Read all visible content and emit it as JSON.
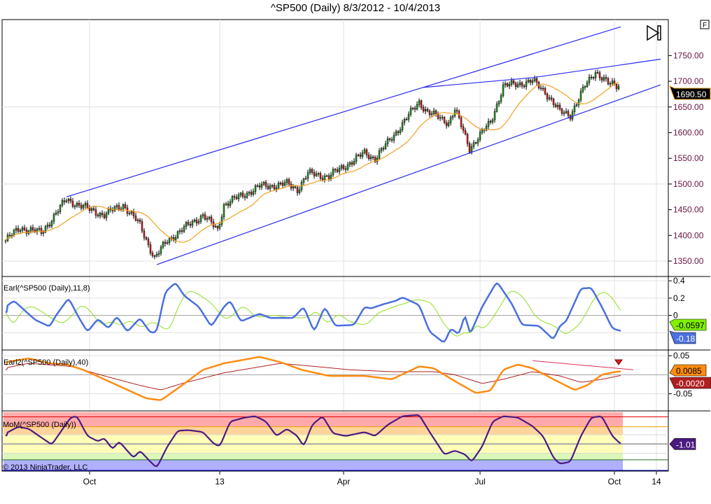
{
  "title": "^SP500 (Daily)  8/3/2012 - 10/4/2013",
  "f_button": "F",
  "copyright": "© 2013 NinjaTrader, LLC",
  "colors": {
    "up": "#22a022",
    "down": "#e0201c",
    "sma": "#f0a020",
    "trend": "#2a2af0",
    "earl": "#4a6fe0",
    "earl_signal": "#90e020",
    "earl2": "#ff8c10",
    "earl2_signal": "#b02020",
    "mom": "#4b1a80"
  },
  "chart_data": [
    {
      "type": "candlestick",
      "title": "^SP500 (Daily)",
      "x_ticks": [
        {
          "label": "Oct",
          "bar": 40
        },
        {
          "label": "13",
          "bar": 102
        },
        {
          "label": "Apr",
          "bar": 161
        },
        {
          "label": "Jul",
          "bar": 226
        },
        {
          "label": "Oct",
          "bar": 290
        },
        {
          "label": "14",
          "bar": 310
        }
      ],
      "ylim": [
        1320,
        1820
      ],
      "y_ticks": [
        "1350.00",
        "1400.00",
        "1450.00",
        "1500.00",
        "1550.00",
        "1600.00",
        "1650.00",
        "1700.00",
        "1750.00"
      ],
      "y_tick_values": [
        1350,
        1400,
        1450,
        1500,
        1550,
        1600,
        1650,
        1700,
        1750
      ],
      "last_price": "1690.50",
      "close_keypoints": [
        [
          0,
          1390
        ],
        [
          7,
          1415
        ],
        [
          17,
          1405
        ],
        [
          29,
          1470
        ],
        [
          40,
          1450
        ],
        [
          47,
          1440
        ],
        [
          56,
          1460
        ],
        [
          64,
          1420
        ],
        [
          71,
          1355
        ],
        [
          77,
          1390
        ],
        [
          94,
          1440
        ],
        [
          101,
          1410
        ],
        [
          104,
          1460
        ],
        [
          121,
          1495
        ],
        [
          134,
          1500
        ],
        [
          139,
          1490
        ],
        [
          144,
          1520
        ],
        [
          154,
          1515
        ],
        [
          171,
          1560
        ],
        [
          176,
          1550
        ],
        [
          182,
          1580
        ],
        [
          197,
          1660
        ],
        [
          201,
          1640
        ],
        [
          211,
          1620
        ],
        [
          214,
          1645
        ],
        [
          221,
          1570
        ],
        [
          231,
          1620
        ],
        [
          237,
          1690
        ],
        [
          251,
          1700
        ],
        [
          257,
          1680
        ],
        [
          264,
          1640
        ],
        [
          269,
          1635
        ],
        [
          276,
          1690
        ],
        [
          281,
          1720
        ],
        [
          287,
          1695
        ],
        [
          292,
          1690.5
        ]
      ],
      "sma_period": 20,
      "trend_lines": [
        [
          [
            29,
            1475
          ],
          [
            293,
            1806
          ]
        ],
        [
          [
            199,
            1688
          ],
          [
            251,
            1707
          ],
          [
            312,
            1743
          ]
        ],
        [
          [
            72,
            1343
          ],
          [
            312,
            1693
          ]
        ]
      ]
    },
    {
      "type": "line",
      "title": "Earl(^SP500 (Daily),11,8)",
      "ylim": [
        -0.4,
        0.45
      ],
      "y_ticks": [
        "0.4",
        "0.2",
        "0"
      ],
      "y_tick_values": [
        0.4,
        0.2,
        0
      ],
      "last_values": {
        "earl": "-0.18",
        "signal": "-0.0597"
      },
      "series": [
        {
          "name": "Earl",
          "points": [
            [
              0,
              0.1
            ],
            [
              4,
              0.17
            ],
            [
              9,
              0.06
            ],
            [
              14,
              -0.05
            ],
            [
              21,
              -0.13
            ],
            [
              24,
              0
            ],
            [
              30,
              0.2
            ],
            [
              35,
              -0.03
            ],
            [
              39,
              -0.19
            ],
            [
              44,
              -0.04
            ],
            [
              49,
              -0.15
            ],
            [
              53,
              -0.01
            ],
            [
              58,
              -0.19
            ],
            [
              64,
              -0.03
            ],
            [
              69,
              -0.2
            ],
            [
              72,
              -0.19
            ],
            [
              76,
              0.27
            ],
            [
              81,
              0.38
            ],
            [
              85,
              0.23
            ],
            [
              92,
              0.1
            ],
            [
              98,
              -0.13
            ],
            [
              104,
              0.1
            ],
            [
              107,
              0.17
            ],
            [
              112,
              -0.07
            ],
            [
              121,
              0.02
            ],
            [
              126,
              -0.03
            ],
            [
              137,
              -0.03
            ],
            [
              142,
              0.1
            ],
            [
              147,
              -0.19
            ],
            [
              152,
              0.1
            ],
            [
              157,
              -0.12
            ],
            [
              166,
              -0.11
            ],
            [
              171,
              0.1
            ],
            [
              174,
              0.08
            ],
            [
              180,
              0.13
            ],
            [
              186,
              0.17
            ],
            [
              189,
              0.21
            ],
            [
              197,
              0.12
            ],
            [
              202,
              -0.19
            ],
            [
              209,
              -0.32
            ],
            [
              212,
              -0.15
            ],
            [
              216,
              -0.22
            ],
            [
              219,
              0.03
            ],
            [
              221,
              -0.23
            ],
            [
              227,
              0.1
            ],
            [
              234,
              0.39
            ],
            [
              241,
              0.14
            ],
            [
              246,
              -0.11
            ],
            [
              254,
              -0.12
            ],
            [
              261,
              -0.28
            ],
            [
              264,
              -0.12
            ],
            [
              267,
              -0.07
            ],
            [
              274,
              0.31
            ],
            [
              279,
              0.32
            ],
            [
              284,
              0.1
            ],
            [
              289,
              -0.15
            ],
            [
              293,
              -0.18
            ]
          ]
        }
      ]
    },
    {
      "type": "line",
      "title": "Earl2(^SP500 (Daily),40)",
      "ylim": [
        -0.095,
        0.065
      ],
      "y_ticks": [
        "0.05",
        "-0.05"
      ],
      "y_tick_values": [
        0.05,
        -0.05
      ],
      "last_values": {
        "earl2": "0.0085",
        "signal": "-0.0020"
      },
      "series": [
        {
          "name": "Earl2",
          "points": [
            [
              0,
              0.033
            ],
            [
              11,
              0.043
            ],
            [
              21,
              0.03
            ],
            [
              29,
              0.027
            ],
            [
              37,
              0.013
            ],
            [
              47,
              -0.012
            ],
            [
              57,
              -0.037
            ],
            [
              67,
              -0.062
            ],
            [
              74,
              -0.067
            ],
            [
              84,
              -0.028
            ],
            [
              94,
              0.013
            ],
            [
              104,
              0.03
            ],
            [
              121,
              0.047
            ],
            [
              131,
              0.033
            ],
            [
              141,
              0.013
            ],
            [
              154,
              -0.003
            ],
            [
              171,
              -0.003
            ],
            [
              184,
              -0.012
            ],
            [
              197,
              0.022
            ],
            [
              204,
              0.017
            ],
            [
              214,
              -0.017
            ],
            [
              224,
              -0.048
            ],
            [
              231,
              -0.042
            ],
            [
              237,
              0.013
            ],
            [
              244,
              0.027
            ],
            [
              251,
              0.017
            ],
            [
              261,
              -0.012
            ],
            [
              271,
              -0.04
            ],
            [
              277,
              -0.028
            ],
            [
              284,
              0
            ],
            [
              291,
              0.008
            ],
            [
              293,
              0.0085
            ]
          ]
        },
        {
          "name": "Signal",
          "points": [
            [
              0,
              0.018
            ],
            [
              11,
              0.03
            ],
            [
              31,
              0.022
            ],
            [
              47,
              -0.003
            ],
            [
              64,
              -0.028
            ],
            [
              74,
              -0.04
            ],
            [
              84,
              -0.023
            ],
            [
              104,
              0.005
            ],
            [
              131,
              0.03
            ],
            [
              147,
              0.022
            ],
            [
              164,
              0.013
            ],
            [
              184,
              0.008
            ],
            [
              204,
              0.008
            ],
            [
              214,
              0
            ],
            [
              227,
              -0.023
            ],
            [
              237,
              -0.012
            ],
            [
              251,
              0.008
            ],
            [
              264,
              -0.003
            ],
            [
              274,
              -0.02
            ],
            [
              284,
              -0.012
            ],
            [
              293,
              -0.002
            ]
          ]
        }
      ],
      "divergence_line": [
        [
          251,
          0.037
        ],
        [
          299,
          0.013
        ]
      ],
      "signal_marker_bar": 292
    },
    {
      "type": "line",
      "title": "MoM(^SP500 (Daily))",
      "ylim": [
        -5.1,
        4.0
      ],
      "last_value": "-1.01",
      "bands": [
        {
          "from": 1.6,
          "to": 3.8,
          "color": "#ffaaaa"
        },
        {
          "from": 0.4,
          "to": 1.6,
          "color": "#ffd49a"
        },
        {
          "from": -2.4,
          "to": 0.4,
          "color": "#ffffb8"
        },
        {
          "from": -3.4,
          "to": -2.4,
          "color": "#dcf8b8"
        },
        {
          "from": -5.0,
          "to": -3.4,
          "color": "#b0b0ff"
        }
      ],
      "levels": [
        {
          "v": 3.1,
          "color": "#e00000"
        },
        {
          "v": 1.6,
          "color": "#f0a000"
        },
        {
          "v": 0.4,
          "color": "#d8d8d8"
        },
        {
          "v": -1.0,
          "color": "#a8a8a8"
        },
        {
          "v": -2.4,
          "color": "#d8d8d8"
        },
        {
          "v": -3.4,
          "color": "#207020"
        },
        {
          "v": -5.0,
          "color": "#0000d0"
        }
      ],
      "series": [
        {
          "name": "MoM",
          "points": [
            [
              0,
              0.6
            ],
            [
              6,
              1.6
            ],
            [
              11,
              1.3
            ],
            [
              16,
              0.2
            ],
            [
              22,
              -1.1
            ],
            [
              31,
              3.0
            ],
            [
              34,
              3.2
            ],
            [
              39,
              0.2
            ],
            [
              44,
              -0.6
            ],
            [
              47,
              -0.1
            ],
            [
              51,
              -1.8
            ],
            [
              54,
              -0.6
            ],
            [
              61,
              -3.1
            ],
            [
              64,
              -2.0
            ],
            [
              69,
              -3.7
            ],
            [
              72,
              -4.6
            ],
            [
              77,
              -1.4
            ],
            [
              82,
              1.0
            ],
            [
              87,
              1.1
            ],
            [
              94,
              0.8
            ],
            [
              99,
              -0.9
            ],
            [
              102,
              -1.4
            ],
            [
              107,
              2.4
            ],
            [
              114,
              3.0
            ],
            [
              119,
              3.2
            ],
            [
              124,
              2.4
            ],
            [
              129,
              0.2
            ],
            [
              134,
              1.3
            ],
            [
              139,
              0.2
            ],
            [
              142,
              -1.4
            ],
            [
              146,
              1.9
            ],
            [
              151,
              3.2
            ],
            [
              156,
              0.6
            ],
            [
              162,
              0.2
            ],
            [
              171,
              0.8
            ],
            [
              176,
              0.2
            ],
            [
              182,
              1.9
            ],
            [
              189,
              3.2
            ],
            [
              197,
              3.4
            ],
            [
              202,
              0.8
            ],
            [
              209,
              -2.6
            ],
            [
              214,
              -2.0
            ],
            [
              219,
              -2.6
            ],
            [
              222,
              -3.7
            ],
            [
              227,
              -1.4
            ],
            [
              232,
              2.4
            ],
            [
              237,
              3.2
            ],
            [
              244,
              3.0
            ],
            [
              251,
              1.7
            ],
            [
              256,
              0.2
            ],
            [
              261,
              -3.1
            ],
            [
              264,
              -4.0
            ],
            [
              269,
              -3.7
            ],
            [
              274,
              0.2
            ],
            [
              279,
              3.0
            ],
            [
              284,
              3.2
            ],
            [
              289,
              0.2
            ],
            [
              293,
              -1.0
            ]
          ]
        }
      ]
    }
  ]
}
